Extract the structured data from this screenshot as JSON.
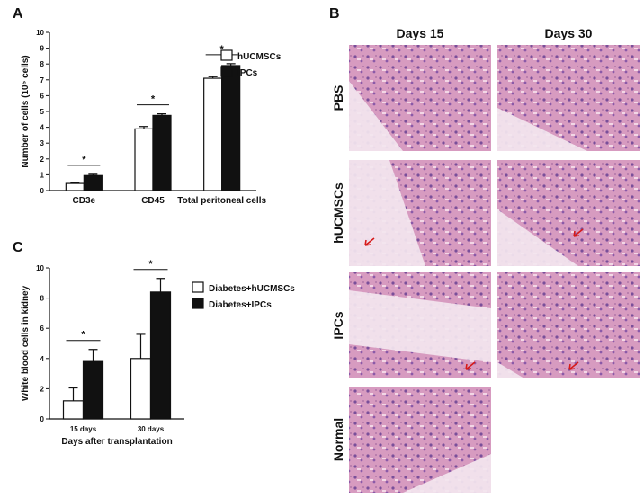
{
  "panel_labels": [
    "A",
    "B",
    "C"
  ],
  "chart_data": [
    {
      "type": "bar",
      "ylabel": "Number of cells (10⁵ cells)",
      "categories": [
        "CD3e",
        "CD45",
        "Total peritoneal cells"
      ],
      "series": [
        {
          "name": "hUCMSCs",
          "color": "#ffffff",
          "values": [
            0.45,
            3.9,
            7.1
          ],
          "errors": [
            0.05,
            0.15,
            0.1
          ]
        },
        {
          "name": "IPCs",
          "color": "#111111",
          "values": [
            0.95,
            4.75,
            7.9
          ],
          "errors": [
            0.08,
            0.1,
            0.12
          ]
        }
      ],
      "ylim": [
        0,
        10
      ],
      "yticks": [
        0,
        1,
        2,
        3,
        4,
        5,
        6,
        7,
        8,
        9,
        10
      ],
      "annotations": [
        "*",
        "*",
        "*"
      ],
      "legend": "upper right"
    },
    {
      "type": "bar",
      "ylabel": "White blood cells in kidney",
      "xlabel": "Days after transplantation",
      "categories": [
        "15 days",
        "30 days"
      ],
      "series": [
        {
          "name": "Diabetes+hUCMSCs",
          "color": "#ffffff",
          "values": [
            1.2,
            4.0
          ],
          "errors": [
            0.85,
            1.6
          ]
        },
        {
          "name": "Diabetes+IPCs",
          "color": "#111111",
          "values": [
            3.8,
            8.4
          ],
          "errors": [
            0.8,
            0.9
          ]
        }
      ],
      "ylim": [
        0,
        10
      ],
      "yticks": [
        0,
        2,
        4,
        6,
        8,
        10
      ],
      "annotations": [
        "*",
        "*"
      ],
      "legend": "upper right"
    }
  ],
  "histology": {
    "columns": [
      "Days 15",
      "Days 30"
    ],
    "rows": [
      "PBS",
      "hUCMSCs",
      "IPCs",
      "Normal"
    ]
  }
}
